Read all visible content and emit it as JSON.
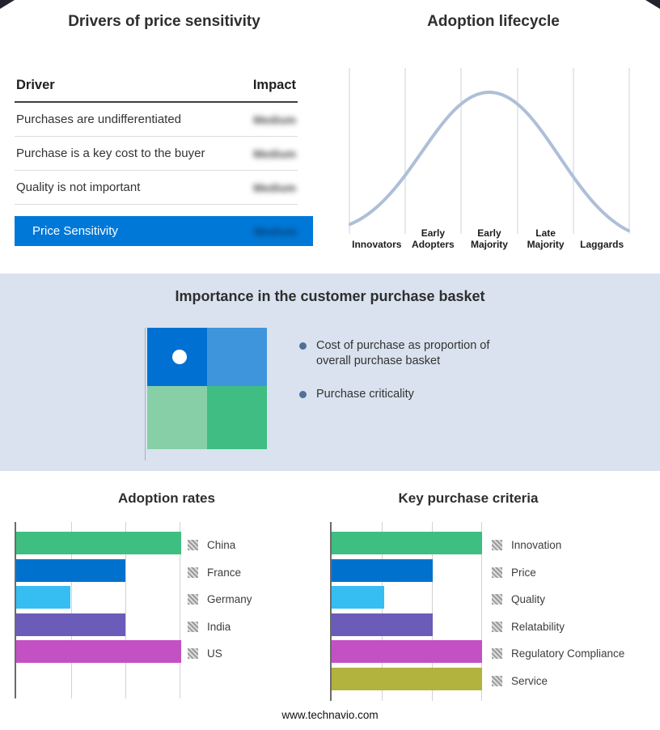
{
  "drivers_panel": {
    "title": "Drivers of price sensitivity",
    "table": {
      "col_driver": "Driver",
      "col_impact": "Impact",
      "rows": [
        {
          "driver": "Purchases are undifferentiated",
          "impact": "Medium"
        },
        {
          "driver": "Purchase is a key cost to the buyer",
          "impact": "Medium"
        },
        {
          "driver": "Quality is not important",
          "impact": "Medium"
        }
      ],
      "summary": {
        "label": "Price Sensitivity",
        "impact": "Medium",
        "bg": "#0078d7"
      }
    }
  },
  "lifecycle_panel": {
    "title": "Adoption lifecycle",
    "curve_color": "#aebfd8"
  },
  "basket_panel": {
    "title": "Importance in the customer purchase basket",
    "band_bg": "#d9e2ee",
    "bullets": [
      "Cost of purchase as proportion of overall purchase basket",
      "Purchase criticality"
    ],
    "quadrant_colors": [
      "#0070d2",
      "#3e95dc",
      "#86cfa7",
      "#3fbd82"
    ]
  },
  "footer": {
    "url": "www.technavio.com"
  },
  "chart_data": [
    {
      "type": "bar",
      "orientation": "horizontal",
      "title": "Adoption rates",
      "categories": [
        "China",
        "France",
        "Germany",
        "India",
        "US"
      ],
      "values": [
        100,
        66,
        33,
        66,
        100
      ],
      "colors": [
        "#3fbe82",
        "#0072ce",
        "#36bdf2",
        "#6a5cb8",
        "#c351c3"
      ],
      "xlim": [
        0,
        100
      ],
      "grid": true,
      "legend_position": "right",
      "note": "relative bar lengths; numeric axis not labeled in source"
    },
    {
      "type": "bar",
      "orientation": "horizontal",
      "title": "Key purchase criteria",
      "categories": [
        "Innovation",
        "Price",
        "Quality",
        "Relatability",
        "Regulatory Compliance",
        "Service"
      ],
      "values": [
        100,
        67,
        35,
        67,
        100,
        100
      ],
      "colors": [
        "#3fbe82",
        "#0072ce",
        "#36bdf2",
        "#6a5cb8",
        "#c351c3",
        "#b2b23e"
      ],
      "xlim": [
        0,
        100
      ],
      "grid": true,
      "legend_position": "right",
      "note": "relative bar lengths; numeric axis not labeled in source"
    },
    {
      "type": "line",
      "title": "Adoption lifecycle",
      "categories": [
        "Innovators",
        "Early Adopters",
        "Early Majority",
        "Late Majority",
        "Laggards"
      ],
      "values": [
        10,
        55,
        100,
        55,
        10
      ],
      "note": "bell-shaped adoption curve; no numeric axis shown"
    }
  ]
}
